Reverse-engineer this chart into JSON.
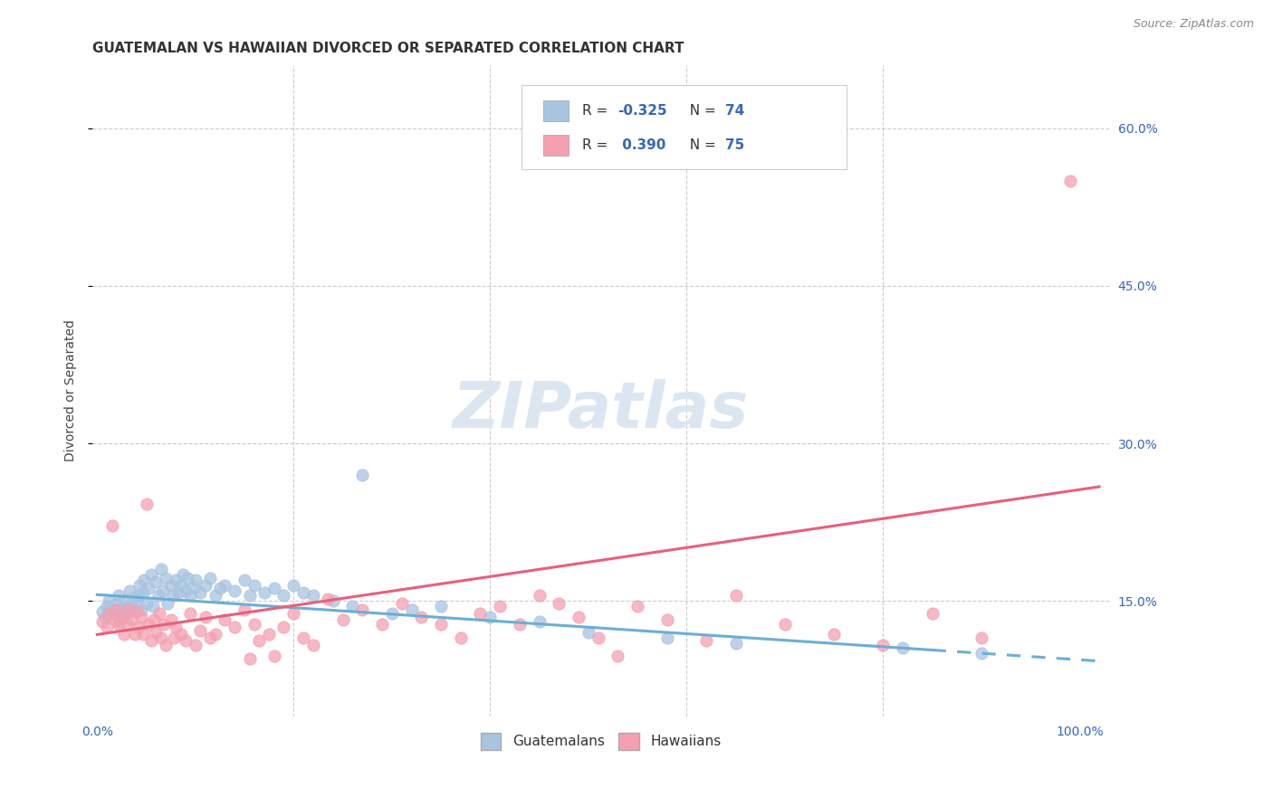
{
  "title": "GUATEMALAN VS HAWAIIAN DIVORCED OR SEPARATED CORRELATION CHART",
  "source": "Source: ZipAtlas.com",
  "ylabel": "Divorced or Separated",
  "y_tick_vals": [
    0.15,
    0.3,
    0.45,
    0.6
  ],
  "y_tick_labels": [
    "15.0%",
    "30.0%",
    "45.0%",
    "60.0%"
  ],
  "xlim": [
    -0.005,
    1.03
  ],
  "ylim": [
    0.04,
    0.66
  ],
  "legend_guatemalans_label": "Guatemalans",
  "legend_hawaiians_label": "Hawaiians",
  "r_guatemalan": -0.325,
  "n_guatemalan": 74,
  "r_hawaiian": 0.39,
  "n_hawaiian": 75,
  "color_guatemalan": "#a8c4e0",
  "color_hawaiian": "#f4a0b0",
  "color_blue_text": "#3565c0",
  "color_line_guatemalan": "#6baed6",
  "color_line_hawaiian": "#e8607a",
  "background_color": "#ffffff",
  "watermark_color": "#dce6f0",
  "title_fontsize": 11,
  "axis_label_fontsize": 10,
  "tick_fontsize": 10,
  "legend_fontsize": 11,
  "watermark_fontsize": 52,
  "guat_x": [
    0.005,
    0.008,
    0.01,
    0.012,
    0.015,
    0.018,
    0.02,
    0.022,
    0.023,
    0.025,
    0.027,
    0.028,
    0.03,
    0.032,
    0.033,
    0.035,
    0.037,
    0.038,
    0.04,
    0.042,
    0.043,
    0.045,
    0.047,
    0.048,
    0.05,
    0.052,
    0.055,
    0.057,
    0.06,
    0.062,
    0.065,
    0.067,
    0.07,
    0.072,
    0.075,
    0.077,
    0.08,
    0.083,
    0.085,
    0.087,
    0.09,
    0.092,
    0.095,
    0.098,
    0.1,
    0.105,
    0.11,
    0.115,
    0.12,
    0.125,
    0.13,
    0.14,
    0.15,
    0.155,
    0.16,
    0.17,
    0.18,
    0.19,
    0.2,
    0.21,
    0.22,
    0.24,
    0.26,
    0.27,
    0.3,
    0.32,
    0.35,
    0.4,
    0.45,
    0.5,
    0.58,
    0.65,
    0.82,
    0.9
  ],
  "guat_y": [
    0.14,
    0.135,
    0.145,
    0.15,
    0.138,
    0.142,
    0.148,
    0.155,
    0.13,
    0.143,
    0.137,
    0.151,
    0.144,
    0.139,
    0.16,
    0.147,
    0.153,
    0.141,
    0.149,
    0.155,
    0.165,
    0.142,
    0.158,
    0.17,
    0.148,
    0.162,
    0.175,
    0.145,
    0.168,
    0.155,
    0.18,
    0.16,
    0.172,
    0.148,
    0.165,
    0.155,
    0.17,
    0.158,
    0.165,
    0.175,
    0.16,
    0.172,
    0.155,
    0.163,
    0.17,
    0.158,
    0.165,
    0.172,
    0.155,
    0.162,
    0.165,
    0.16,
    0.17,
    0.155,
    0.165,
    0.158,
    0.162,
    0.155,
    0.165,
    0.158,
    0.155,
    0.15,
    0.145,
    0.27,
    0.138,
    0.142,
    0.145,
    0.135,
    0.13,
    0.12,
    0.115,
    0.11,
    0.105,
    0.1
  ],
  "haw_x": [
    0.005,
    0.01,
    0.012,
    0.015,
    0.018,
    0.02,
    0.022,
    0.025,
    0.027,
    0.03,
    0.032,
    0.035,
    0.038,
    0.04,
    0.042,
    0.045,
    0.047,
    0.05,
    0.052,
    0.055,
    0.058,
    0.06,
    0.063,
    0.065,
    0.068,
    0.07,
    0.075,
    0.078,
    0.08,
    0.085,
    0.09,
    0.095,
    0.1,
    0.105,
    0.11,
    0.115,
    0.12,
    0.13,
    0.14,
    0.15,
    0.155,
    0.16,
    0.165,
    0.175,
    0.18,
    0.19,
    0.2,
    0.21,
    0.22,
    0.235,
    0.25,
    0.27,
    0.29,
    0.31,
    0.33,
    0.35,
    0.37,
    0.39,
    0.41,
    0.43,
    0.45,
    0.47,
    0.49,
    0.51,
    0.53,
    0.55,
    0.58,
    0.62,
    0.65,
    0.7,
    0.75,
    0.8,
    0.85,
    0.9,
    0.99
  ],
  "haw_y": [
    0.13,
    0.125,
    0.138,
    0.222,
    0.132,
    0.142,
    0.128,
    0.135,
    0.118,
    0.128,
    0.142,
    0.132,
    0.118,
    0.14,
    0.125,
    0.135,
    0.118,
    0.242,
    0.128,
    0.112,
    0.132,
    0.12,
    0.138,
    0.115,
    0.128,
    0.108,
    0.132,
    0.115,
    0.125,
    0.118,
    0.112,
    0.138,
    0.108,
    0.122,
    0.135,
    0.115,
    0.118,
    0.132,
    0.125,
    0.142,
    0.095,
    0.128,
    0.112,
    0.118,
    0.098,
    0.125,
    0.138,
    0.115,
    0.108,
    0.152,
    0.132,
    0.142,
    0.128,
    0.148,
    0.135,
    0.128,
    0.115,
    0.138,
    0.145,
    0.128,
    0.155,
    0.148,
    0.135,
    0.115,
    0.098,
    0.145,
    0.132,
    0.112,
    0.155,
    0.128,
    0.118,
    0.108,
    0.138,
    0.115,
    0.55
  ]
}
